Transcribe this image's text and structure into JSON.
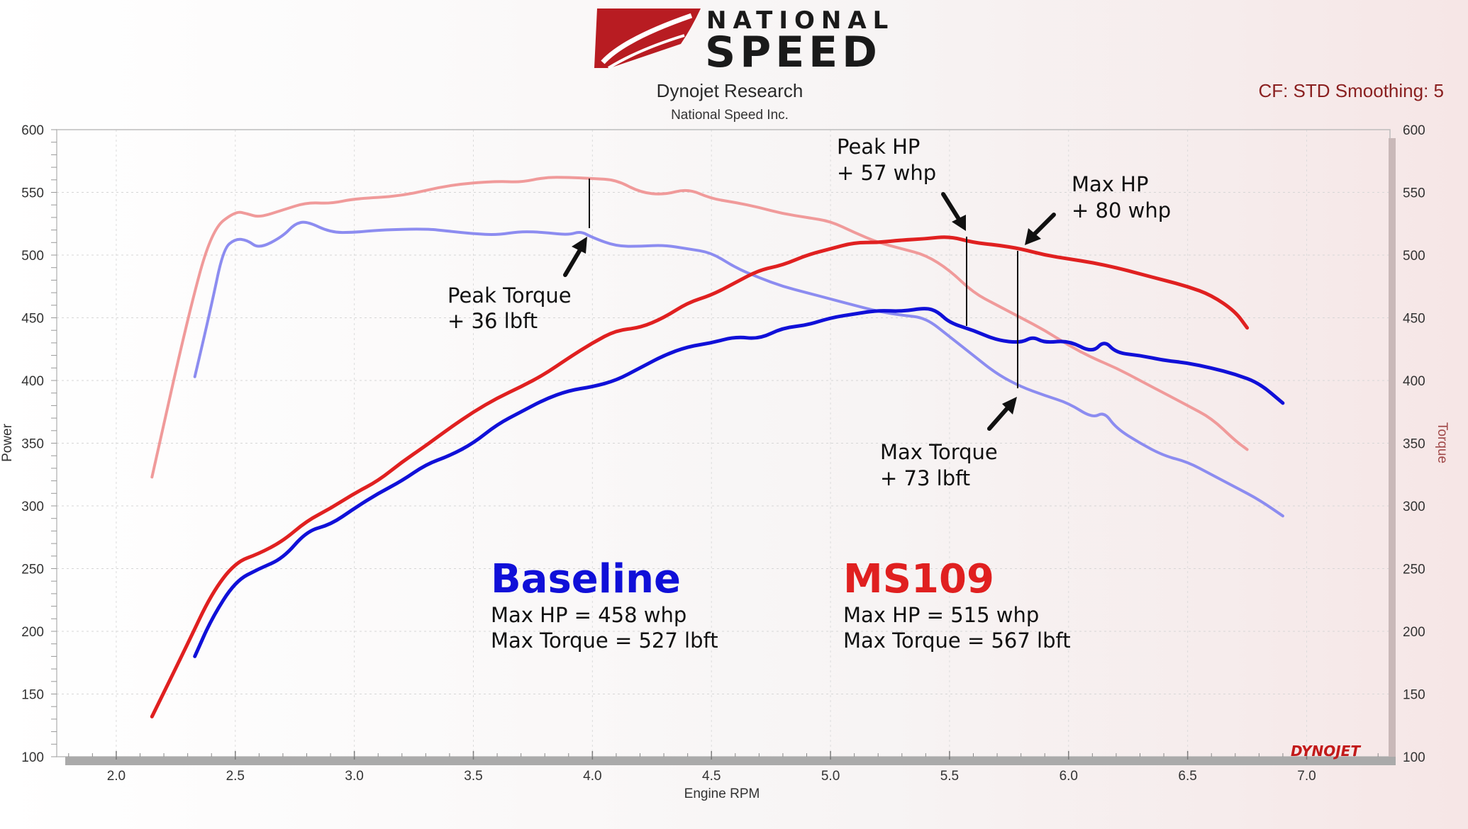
{
  "header": {
    "logo_line1": "NATIONAL",
    "logo_line2": "SPEED",
    "title": "Dynojet Research",
    "subtitle": "National Speed Inc.",
    "correction": "CF: STD Smoothing: 5"
  },
  "brand_mark": "DYNOJET",
  "legend": {
    "baseline": {
      "name": "Baseline",
      "max_hp": "Max HP = 458 whp",
      "max_torque": "Max Torque = 527 lbft"
    },
    "tuned": {
      "name": "MS109",
      "max_hp": "Max HP = 515 whp",
      "max_torque": "Max Torque = 567 lbft"
    }
  },
  "annotations": {
    "peak_torque": [
      "Peak Torque",
      "+ 36 lbft"
    ],
    "peak_hp": [
      "Peak HP",
      "+ 57 whp"
    ],
    "max_hp": [
      "Max HP",
      "+ 80 whp"
    ],
    "max_torque": [
      "Max Torque",
      "+ 73 lbft"
    ]
  },
  "colors": {
    "baseline_hp": "#1010d8",
    "baseline_torque": "#8c8cf0",
    "tuned_hp": "#e02020",
    "tuned_torque": "#f09a9a",
    "right_axis": "#b05050"
  },
  "chart_data": {
    "type": "line",
    "xlabel": "Engine RPM",
    "ylabel": "Power",
    "y2label": "Torque",
    "xlim": [
      1.75,
      7.35
    ],
    "ylim": [
      100,
      600
    ],
    "y2lim": [
      100,
      600
    ],
    "xticks": [
      "2.0",
      "2.5",
      "3.0",
      "3.5",
      "4.0",
      "4.5",
      "5.0",
      "5.5",
      "6.0",
      "6.5",
      "7.0"
    ],
    "yticks": [
      "100",
      "150",
      "200",
      "250",
      "300",
      "350",
      "400",
      "450",
      "500",
      "550",
      "600"
    ],
    "grid": true,
    "series": [
      {
        "name": "Baseline",
        "key": "baseline_hp",
        "axis": "left",
        "points": [
          [
            2.33,
            180
          ],
          [
            2.4,
            210
          ],
          [
            2.5,
            240
          ],
          [
            2.6,
            250
          ],
          [
            2.7,
            258
          ],
          [
            2.8,
            280
          ],
          [
            2.9,
            285
          ],
          [
            3.0,
            298
          ],
          [
            3.1,
            310
          ],
          [
            3.2,
            320
          ],
          [
            3.3,
            333
          ],
          [
            3.4,
            340
          ],
          [
            3.5,
            350
          ],
          [
            3.6,
            365
          ],
          [
            3.7,
            375
          ],
          [
            3.8,
            385
          ],
          [
            3.9,
            392
          ],
          [
            4.0,
            395
          ],
          [
            4.1,
            400
          ],
          [
            4.2,
            410
          ],
          [
            4.3,
            420
          ],
          [
            4.4,
            427
          ],
          [
            4.5,
            430
          ],
          [
            4.6,
            435
          ],
          [
            4.7,
            433
          ],
          [
            4.8,
            442
          ],
          [
            4.9,
            444
          ],
          [
            5.0,
            450
          ],
          [
            5.1,
            453
          ],
          [
            5.2,
            456
          ],
          [
            5.3,
            455
          ],
          [
            5.4,
            458
          ],
          [
            5.45,
            455
          ],
          [
            5.5,
            446
          ],
          [
            5.6,
            440
          ],
          [
            5.7,
            432
          ],
          [
            5.8,
            430
          ],
          [
            5.85,
            435
          ],
          [
            5.9,
            430
          ],
          [
            6.0,
            432
          ],
          [
            6.1,
            422
          ],
          [
            6.15,
            432
          ],
          [
            6.2,
            422
          ],
          [
            6.3,
            420
          ],
          [
            6.4,
            416
          ],
          [
            6.5,
            414
          ],
          [
            6.6,
            410
          ],
          [
            6.7,
            405
          ],
          [
            6.8,
            398
          ],
          [
            6.9,
            382
          ]
        ]
      },
      {
        "name": "MS109",
        "key": "tuned_hp",
        "axis": "left",
        "points": [
          [
            2.15,
            132
          ],
          [
            2.3,
            190
          ],
          [
            2.4,
            230
          ],
          [
            2.5,
            255
          ],
          [
            2.6,
            262
          ],
          [
            2.7,
            272
          ],
          [
            2.8,
            288
          ],
          [
            2.9,
            298
          ],
          [
            3.0,
            310
          ],
          [
            3.1,
            320
          ],
          [
            3.2,
            335
          ],
          [
            3.3,
            348
          ],
          [
            3.4,
            362
          ],
          [
            3.5,
            375
          ],
          [
            3.6,
            386
          ],
          [
            3.7,
            395
          ],
          [
            3.8,
            405
          ],
          [
            3.9,
            418
          ],
          [
            4.0,
            430
          ],
          [
            4.1,
            440
          ],
          [
            4.2,
            442
          ],
          [
            4.3,
            450
          ],
          [
            4.4,
            462
          ],
          [
            4.5,
            468
          ],
          [
            4.6,
            478
          ],
          [
            4.7,
            488
          ],
          [
            4.8,
            492
          ],
          [
            4.9,
            500
          ],
          [
            5.0,
            505
          ],
          [
            5.1,
            510
          ],
          [
            5.2,
            510
          ],
          [
            5.3,
            512
          ],
          [
            5.4,
            513
          ],
          [
            5.5,
            515
          ],
          [
            5.6,
            510
          ],
          [
            5.7,
            508
          ],
          [
            5.8,
            505
          ],
          [
            5.9,
            500
          ],
          [
            6.0,
            497
          ],
          [
            6.1,
            494
          ],
          [
            6.2,
            490
          ],
          [
            6.3,
            485
          ],
          [
            6.4,
            480
          ],
          [
            6.5,
            475
          ],
          [
            6.6,
            468
          ],
          [
            6.7,
            455
          ],
          [
            6.75,
            442
          ]
        ]
      },
      {
        "name": "Baseline",
        "key": "baseline_torque",
        "axis": "right",
        "points": [
          [
            2.33,
            403
          ],
          [
            2.4,
            460
          ],
          [
            2.45,
            505
          ],
          [
            2.5,
            513
          ],
          [
            2.55,
            512
          ],
          [
            2.6,
            505
          ],
          [
            2.7,
            515
          ],
          [
            2.75,
            525
          ],
          [
            2.8,
            527
          ],
          [
            2.9,
            518
          ],
          [
            3.0,
            518
          ],
          [
            3.1,
            520
          ],
          [
            3.3,
            521
          ],
          [
            3.4,
            519
          ],
          [
            3.5,
            517
          ],
          [
            3.6,
            516
          ],
          [
            3.7,
            519
          ],
          [
            3.8,
            518
          ],
          [
            3.9,
            516
          ],
          [
            3.95,
            519
          ],
          [
            4.0,
            514
          ],
          [
            4.1,
            507
          ],
          [
            4.2,
            507
          ],
          [
            4.3,
            508
          ],
          [
            4.4,
            505
          ],
          [
            4.5,
            502
          ],
          [
            4.6,
            490
          ],
          [
            4.7,
            482
          ],
          [
            4.8,
            475
          ],
          [
            4.9,
            470
          ],
          [
            5.0,
            465
          ],
          [
            5.1,
            460
          ],
          [
            5.2,
            455
          ],
          [
            5.3,
            452
          ],
          [
            5.4,
            450
          ],
          [
            5.5,
            435
          ],
          [
            5.6,
            420
          ],
          [
            5.7,
            405
          ],
          [
            5.8,
            395
          ],
          [
            5.9,
            388
          ],
          [
            6.0,
            382
          ],
          [
            6.1,
            370
          ],
          [
            6.15,
            375
          ],
          [
            6.2,
            362
          ],
          [
            6.3,
            350
          ],
          [
            6.4,
            340
          ],
          [
            6.5,
            335
          ],
          [
            6.6,
            325
          ],
          [
            6.7,
            315
          ],
          [
            6.8,
            305
          ],
          [
            6.9,
            292
          ]
        ]
      },
      {
        "name": "MS109",
        "key": "tuned_torque",
        "axis": "right",
        "points": [
          [
            2.15,
            323
          ],
          [
            2.3,
            450
          ],
          [
            2.4,
            520
          ],
          [
            2.5,
            535
          ],
          [
            2.55,
            533
          ],
          [
            2.6,
            530
          ],
          [
            2.7,
            536
          ],
          [
            2.8,
            542
          ],
          [
            2.9,
            541
          ],
          [
            3.0,
            545
          ],
          [
            3.2,
            547
          ],
          [
            3.4,
            556
          ],
          [
            3.6,
            559
          ],
          [
            3.7,
            558
          ],
          [
            3.8,
            562
          ],
          [
            3.9,
            562
          ],
          [
            4.0,
            561
          ],
          [
            4.1,
            560
          ],
          [
            4.2,
            550
          ],
          [
            4.3,
            548
          ],
          [
            4.4,
            553
          ],
          [
            4.5,
            545
          ],
          [
            4.6,
            542
          ],
          [
            4.7,
            538
          ],
          [
            4.8,
            533
          ],
          [
            4.9,
            530
          ],
          [
            5.0,
            527
          ],
          [
            5.1,
            518
          ],
          [
            5.2,
            510
          ],
          [
            5.3,
            505
          ],
          [
            5.4,
            500
          ],
          [
            5.5,
            488
          ],
          [
            5.6,
            470
          ],
          [
            5.7,
            460
          ],
          [
            5.8,
            450
          ],
          [
            5.9,
            440
          ],
          [
            6.0,
            428
          ],
          [
            6.1,
            418
          ],
          [
            6.2,
            410
          ],
          [
            6.3,
            400
          ],
          [
            6.4,
            390
          ],
          [
            6.5,
            380
          ],
          [
            6.6,
            370
          ],
          [
            6.7,
            352
          ],
          [
            6.75,
            345
          ]
        ]
      }
    ]
  }
}
